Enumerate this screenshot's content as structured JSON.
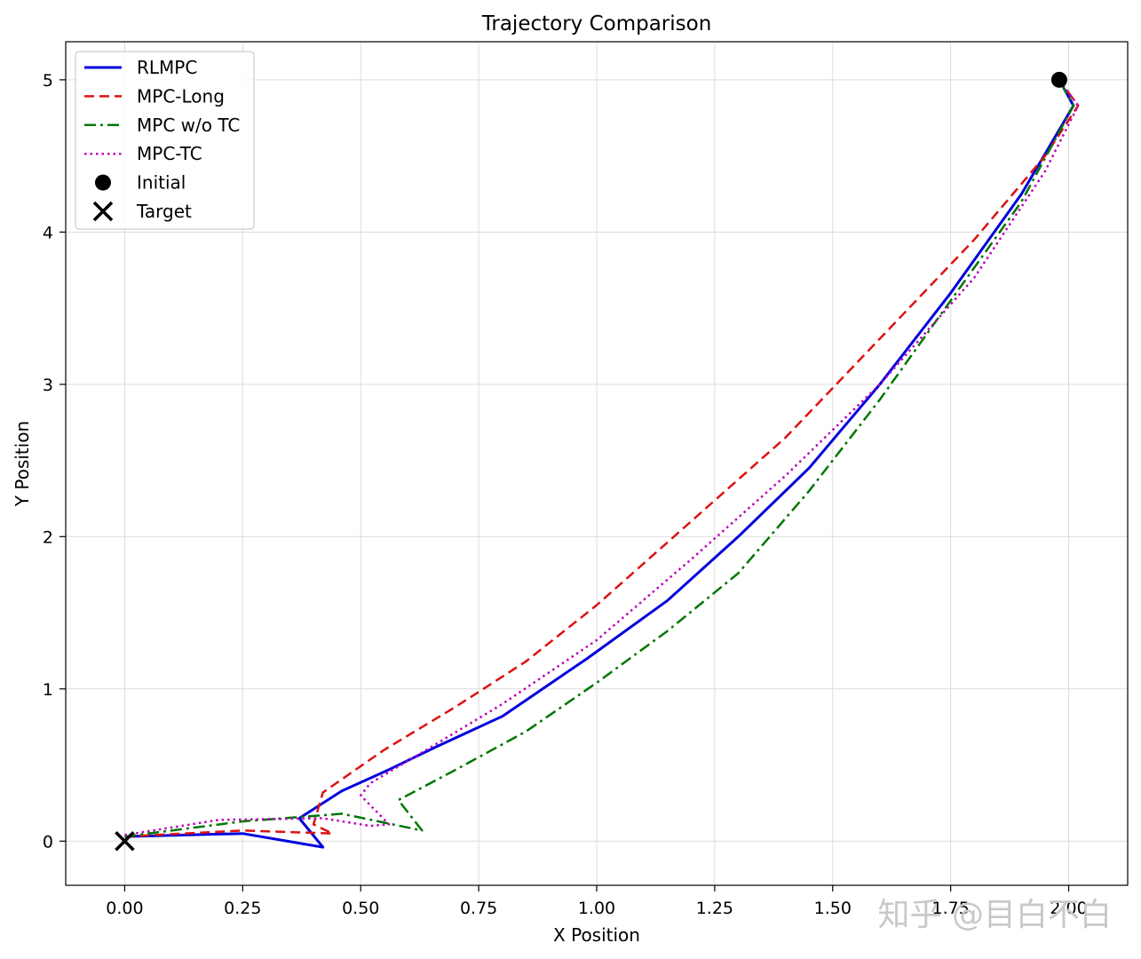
{
  "chart_data": {
    "type": "line",
    "title": "Trajectory Comparison",
    "xlabel": "X Position",
    "ylabel": "Y Position",
    "xlim": [
      -0.125,
      2.125
    ],
    "ylim": [
      -0.29,
      5.25
    ],
    "xticks": [
      0.0,
      0.25,
      0.5,
      0.75,
      1.0,
      1.25,
      1.5,
      1.75,
      2.0
    ],
    "xtick_labels": [
      "0.00",
      "0.25",
      "0.50",
      "0.75",
      "1.00",
      "1.25",
      "1.50",
      "1.75",
      "2.00"
    ],
    "yticks": [
      0,
      1,
      2,
      3,
      4,
      5
    ],
    "ytick_labels": [
      "0",
      "1",
      "2",
      "3",
      "4",
      "5"
    ],
    "grid": true,
    "legend_position": "top-left",
    "series": [
      {
        "name": "RLMPC",
        "color": "#0000dd",
        "style": "solid",
        "x": [
          0.0,
          0.25,
          0.42,
          0.37,
          0.46,
          0.56,
          0.66,
          0.8,
          0.98,
          1.15,
          1.3,
          1.45,
          1.6,
          1.75,
          1.9,
          2.01,
          1.98
        ],
        "y": [
          0.03,
          0.05,
          -0.04,
          0.15,
          0.33,
          0.47,
          0.62,
          0.82,
          1.2,
          1.58,
          2.0,
          2.45,
          3.0,
          3.6,
          4.25,
          4.83,
          5.0
        ]
      },
      {
        "name": "MPC-Long",
        "color": "#dd1111",
        "style": "dashed",
        "x": [
          0.0,
          0.25,
          0.44,
          0.4,
          0.42,
          0.55,
          0.7,
          0.85,
          1.0,
          1.2,
          1.4,
          1.6,
          1.8,
          1.95,
          2.02,
          1.98
        ],
        "y": [
          0.03,
          0.07,
          0.05,
          0.11,
          0.32,
          0.6,
          0.88,
          1.18,
          1.55,
          2.1,
          2.65,
          3.3,
          3.95,
          4.5,
          4.83,
          5.0
        ]
      },
      {
        "name": "MPC w/o TC",
        "color": "#007700",
        "style": "dashdot",
        "x": [
          0.0,
          0.25,
          0.42,
          0.46,
          0.63,
          0.58,
          0.69,
          0.85,
          1.0,
          1.15,
          1.3,
          1.45,
          1.6,
          1.75,
          1.9,
          2.01,
          1.98
        ],
        "y": [
          0.03,
          0.13,
          0.17,
          0.18,
          0.07,
          0.27,
          0.45,
          0.72,
          1.04,
          1.38,
          1.76,
          2.3,
          2.9,
          3.55,
          4.2,
          4.83,
          5.0
        ]
      },
      {
        "name": "MPC-TC",
        "color": "#bb00bb",
        "style": "dotted",
        "x": [
          0.0,
          0.2,
          0.42,
          0.52,
          0.56,
          0.5,
          0.52,
          0.65,
          0.8,
          1.0,
          1.2,
          1.4,
          1.6,
          1.8,
          1.95,
          2.02,
          1.98
        ],
        "y": [
          0.04,
          0.14,
          0.15,
          0.1,
          0.11,
          0.3,
          0.38,
          0.62,
          0.9,
          1.32,
          1.85,
          2.4,
          3.0,
          3.7,
          4.4,
          4.83,
          5.0
        ]
      }
    ],
    "markers": [
      {
        "name": "Initial",
        "shape": "circle",
        "x": 1.98,
        "y": 5.0,
        "color": "#000000"
      },
      {
        "name": "Target",
        "shape": "x",
        "x": 0.0,
        "y": 0.0,
        "color": "#000000"
      }
    ]
  },
  "watermark": "知乎 @目白不白"
}
